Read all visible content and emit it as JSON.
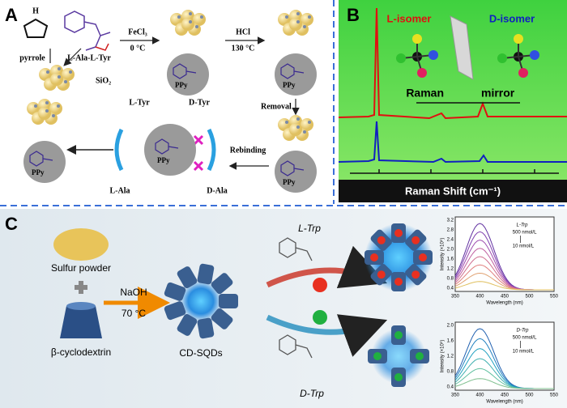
{
  "panel_a": {
    "label": "A",
    "pyrrole_h": "H",
    "pyrrole": "pyrrole",
    "template": "L-Ala-L-Tyr",
    "silica": "SiO₂",
    "step1_reagent": "FeCl₃",
    "step1_temp": "0 °C",
    "step2_reagent": "HCl",
    "step2_temp": "130 °C",
    "removal": "Removal",
    "rebinding": "Rebinding",
    "l_tyr": "L-Tyr",
    "d_tyr": "D-Tyr",
    "l_ala": "L-Ala",
    "d_ala": "D-Ala",
    "ppy": [
      "PPy",
      "PPy",
      "PPy",
      "PPy",
      "PPy"
    ]
  },
  "panel_b": {
    "label": "B",
    "l_isomer": "L-isomer",
    "d_isomer": "D-isomer",
    "mirror_left": "Raman",
    "mirror_right": "mirror",
    "x_axis_label": "Raman Shift (cm⁻¹)"
  },
  "panel_c": {
    "label": "C",
    "sulfur": "Sulfur powder",
    "base": "NaOH",
    "temperature": "70 °C",
    "cyclodextrin": "β-cyclodextrin",
    "product": "CD-SQDs",
    "l_trp": "L-Trp",
    "d_trp": "D-Trp",
    "inset_top": {
      "analyte": "L-Trp",
      "high": "500 nmol/L",
      "low": "10 nmol/L",
      "y_label": "Intensity (×10⁵)",
      "x_label": "Wavelength (nm)",
      "x_ticks": [
        "350",
        "400",
        "450",
        "500",
        "550"
      ],
      "y_ticks": [
        "3.2",
        "2.8",
        "2.4",
        "2.0",
        "1.6",
        "1.2",
        "0.8",
        "0.4"
      ]
    },
    "inset_bottom": {
      "analyte": "D-Trp",
      "high": "500 nmol/L",
      "low": "10 nmol/L",
      "y_label": "Intensity (×10⁵)",
      "x_label": "Wavelength (nm)",
      "x_ticks": [
        "350",
        "400",
        "450",
        "500",
        "550"
      ],
      "y_ticks": [
        "2.0",
        "1.6",
        "1.2",
        "0.8",
        "0.4"
      ]
    }
  }
}
